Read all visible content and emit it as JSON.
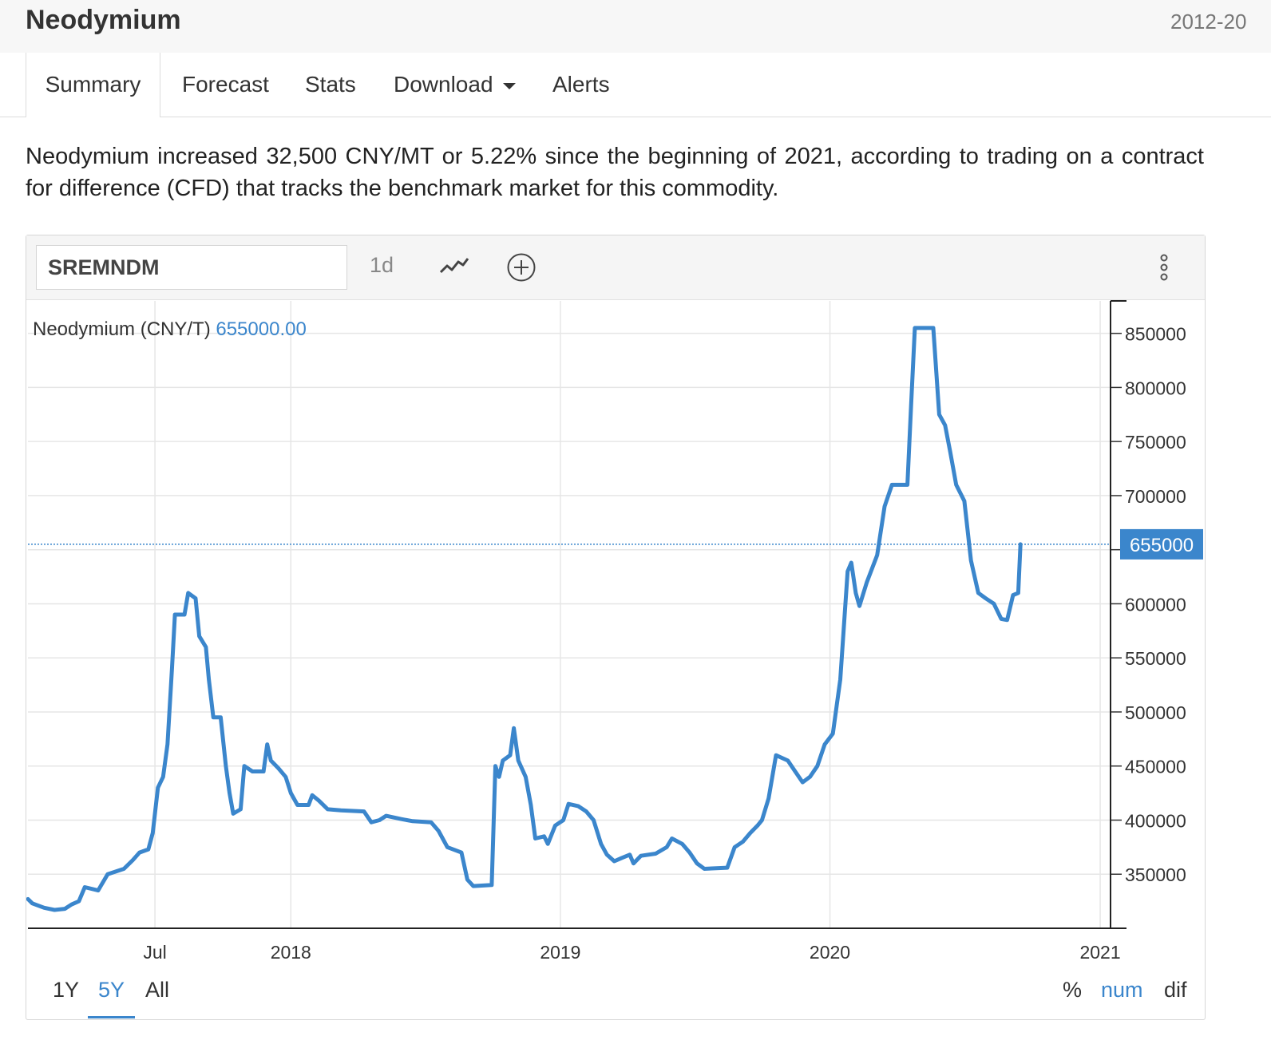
{
  "header": {
    "title": "Neodymium",
    "date_range": "2012-20"
  },
  "tabs": [
    {
      "label": "Summary"
    },
    {
      "label": "Forecast"
    },
    {
      "label": "Stats"
    },
    {
      "label": "Download"
    },
    {
      "label": "Alerts"
    }
  ],
  "summary_text": "Neodymium increased 32,500 CNY/MT or 5.22% since the beginning of 2021, according to trading on a contract for difference (CFD) that tracks the benchmark market for this commodity.",
  "toolbar": {
    "symbol": "SREMNDM",
    "interval": "1d",
    "line_icon": "line-chart-icon",
    "add_icon": "plus-circle-icon",
    "menu_icon": "vertical-dots-icon"
  },
  "legend": {
    "name": "Neodymium (CNY/T)",
    "value": "655000.00"
  },
  "range_buttons": [
    {
      "label": "1Y"
    },
    {
      "label": "5Y",
      "active": true
    },
    {
      "label": "All"
    }
  ],
  "mode_buttons": [
    {
      "label": "%"
    },
    {
      "label": "num",
      "active": true
    },
    {
      "label": "dif"
    }
  ],
  "colors": {
    "line": "#3b86cc",
    "accent": "#3b86cc",
    "grid": "#e6e6e6"
  },
  "chart_data": {
    "type": "line",
    "title": "",
    "xlabel": "",
    "ylabel": "",
    "ylim": [
      300000,
      880000
    ],
    "xlim": [
      "2017-01-10",
      "2021-01-15"
    ],
    "x_ticks": [
      {
        "label": "Jul",
        "date": "2017-07-01"
      },
      {
        "label": "2018",
        "date": "2018-01-01"
      },
      {
        "label": "2019",
        "date": "2019-01-01"
      },
      {
        "label": "2020",
        "date": "2020-01-01"
      },
      {
        "label": "2021",
        "date": "2021-01-01"
      }
    ],
    "y_ticks": [
      350000,
      400000,
      450000,
      500000,
      550000,
      600000,
      650000,
      700000,
      750000,
      800000,
      850000
    ],
    "current_value": 655000,
    "current_label": "655000",
    "grid": true,
    "series": [
      {
        "name": "Neodymium (CNY/T)",
        "points": [
          [
            "2017-01-10",
            327000
          ],
          [
            "2017-01-16",
            323000
          ],
          [
            "2017-02-01",
            319000
          ],
          [
            "2017-02-15",
            317000
          ],
          [
            "2017-03-01",
            318000
          ],
          [
            "2017-03-10",
            322000
          ],
          [
            "2017-03-20",
            325000
          ],
          [
            "2017-03-28",
            338000
          ],
          [
            "2017-04-15",
            335000
          ],
          [
            "2017-04-28",
            350000
          ],
          [
            "2017-05-20",
            355000
          ],
          [
            "2017-06-01",
            363000
          ],
          [
            "2017-06-10",
            370000
          ],
          [
            "2017-06-22",
            373000
          ],
          [
            "2017-06-28",
            388000
          ],
          [
            "2017-07-05",
            430000
          ],
          [
            "2017-07-12",
            440000
          ],
          [
            "2017-07-18",
            470000
          ],
          [
            "2017-07-24",
            540000
          ],
          [
            "2017-07-28",
            590000
          ],
          [
            "2017-08-10",
            590000
          ],
          [
            "2017-08-15",
            610000
          ],
          [
            "2017-08-25",
            605000
          ],
          [
            "2017-08-30",
            570000
          ],
          [
            "2017-09-08",
            560000
          ],
          [
            "2017-09-12",
            530000
          ],
          [
            "2017-09-18",
            495000
          ],
          [
            "2017-09-28",
            495000
          ],
          [
            "2017-10-05",
            450000
          ],
          [
            "2017-10-10",
            425000
          ],
          [
            "2017-10-15",
            406000
          ],
          [
            "2017-10-25",
            410000
          ],
          [
            "2017-10-30",
            450000
          ],
          [
            "2017-11-10",
            445000
          ],
          [
            "2017-11-25",
            445000
          ],
          [
            "2017-11-30",
            470000
          ],
          [
            "2017-12-05",
            455000
          ],
          [
            "2017-12-15",
            448000
          ],
          [
            "2017-12-25",
            440000
          ],
          [
            "2018-01-01",
            425000
          ],
          [
            "2018-01-10",
            414000
          ],
          [
            "2018-01-25",
            414000
          ],
          [
            "2018-01-30",
            423000
          ],
          [
            "2018-02-08",
            418000
          ],
          [
            "2018-02-20",
            410000
          ],
          [
            "2018-03-10",
            409000
          ],
          [
            "2018-04-10",
            408000
          ],
          [
            "2018-04-20",
            398000
          ],
          [
            "2018-05-01",
            400000
          ],
          [
            "2018-05-10",
            404000
          ],
          [
            "2018-05-30",
            401000
          ],
          [
            "2018-06-15",
            399000
          ],
          [
            "2018-07-10",
            398000
          ],
          [
            "2018-07-20",
            390000
          ],
          [
            "2018-08-01",
            375000
          ],
          [
            "2018-08-20",
            370000
          ],
          [
            "2018-08-28",
            345000
          ],
          [
            "2018-09-05",
            339000
          ],
          [
            "2018-09-30",
            340000
          ],
          [
            "2018-10-05",
            450000
          ],
          [
            "2018-10-10",
            440000
          ],
          [
            "2018-10-15",
            455000
          ],
          [
            "2018-10-25",
            460000
          ],
          [
            "2018-10-30",
            485000
          ],
          [
            "2018-11-05",
            455000
          ],
          [
            "2018-11-15",
            440000
          ],
          [
            "2018-11-22",
            414000
          ],
          [
            "2018-11-28",
            383000
          ],
          [
            "2018-12-10",
            385000
          ],
          [
            "2018-12-15",
            378000
          ],
          [
            "2018-12-25",
            395000
          ],
          [
            "2019-01-05",
            400000
          ],
          [
            "2019-01-12",
            415000
          ],
          [
            "2019-01-25",
            413000
          ],
          [
            "2019-02-05",
            408000
          ],
          [
            "2019-02-15",
            400000
          ],
          [
            "2019-02-25",
            378000
          ],
          [
            "2019-03-05",
            368000
          ],
          [
            "2019-03-15",
            362000
          ],
          [
            "2019-03-25",
            365000
          ],
          [
            "2019-04-05",
            368000
          ],
          [
            "2019-04-10",
            360000
          ],
          [
            "2019-04-20",
            367000
          ],
          [
            "2019-05-10",
            369000
          ],
          [
            "2019-05-25",
            375000
          ],
          [
            "2019-06-01",
            383000
          ],
          [
            "2019-06-15",
            378000
          ],
          [
            "2019-06-25",
            370000
          ],
          [
            "2019-07-05",
            360000
          ],
          [
            "2019-07-15",
            355000
          ],
          [
            "2019-08-15",
            356000
          ],
          [
            "2019-08-25",
            375000
          ],
          [
            "2019-09-05",
            380000
          ],
          [
            "2019-09-15",
            388000
          ],
          [
            "2019-09-25",
            395000
          ],
          [
            "2019-10-01",
            400000
          ],
          [
            "2019-10-10",
            420000
          ],
          [
            "2019-10-20",
            460000
          ],
          [
            "2019-11-05",
            455000
          ],
          [
            "2019-11-15",
            445000
          ],
          [
            "2019-11-25",
            435000
          ],
          [
            "2019-12-05",
            440000
          ],
          [
            "2019-12-15",
            450000
          ],
          [
            "2019-12-25",
            470000
          ],
          [
            "2020-01-05",
            480000
          ],
          [
            "2020-01-15",
            530000
          ],
          [
            "2020-01-25",
            630000
          ],
          [
            "2020-01-30",
            638000
          ],
          [
            "2020-02-05",
            610000
          ],
          [
            "2020-02-10",
            598000
          ],
          [
            "2020-02-20",
            620000
          ],
          [
            "2020-03-05",
            645000
          ],
          [
            "2020-03-15",
            690000
          ],
          [
            "2020-03-25",
            710000
          ],
          [
            "2020-04-15",
            710000
          ],
          [
            "2020-04-20",
            785000
          ],
          [
            "2020-04-25",
            855000
          ],
          [
            "2020-05-20",
            855000
          ],
          [
            "2020-05-28",
            775000
          ],
          [
            "2020-06-05",
            765000
          ],
          [
            "2020-06-12",
            740000
          ],
          [
            "2020-06-20",
            710000
          ],
          [
            "2020-07-01",
            695000
          ],
          [
            "2020-07-10",
            640000
          ],
          [
            "2020-07-20",
            610000
          ],
          [
            "2020-07-30",
            605000
          ],
          [
            "2020-08-10",
            600000
          ],
          [
            "2020-08-20",
            586000
          ],
          [
            "2020-08-28",
            585000
          ],
          [
            "2020-09-05",
            608000
          ],
          [
            "2020-09-12",
            610000
          ],
          [
            "2020-09-15",
            655000
          ]
        ]
      }
    ]
  }
}
